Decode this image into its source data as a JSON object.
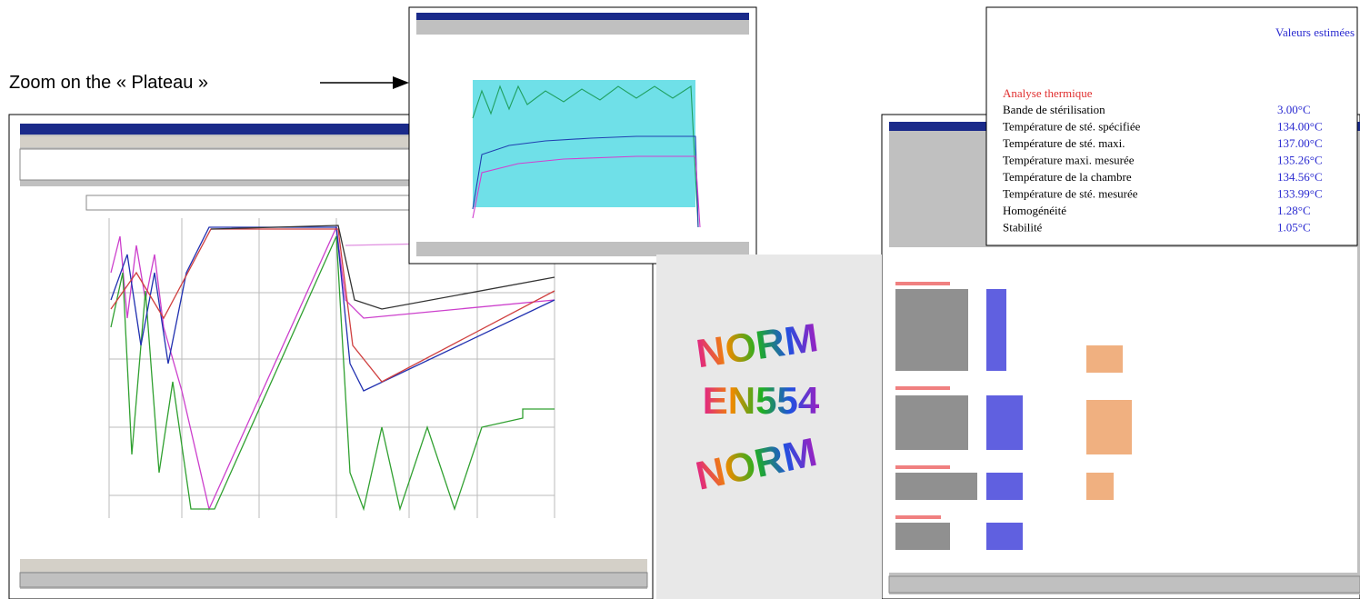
{
  "caption": "Zoom on the « Plateau »",
  "zoom_table": {
    "header": "Valeurs estimées",
    "section": "Analyse thermique",
    "rows": [
      [
        "Bande de stérilisation",
        "3.00°C"
      ],
      [
        "Température de sté. spécifiée",
        "134.00°C"
      ],
      [
        "Température de sté. maxi.",
        "137.00°C"
      ],
      [
        "Température maxi. mesurée",
        "135.26°C"
      ],
      [
        "Température de la chambre",
        "134.56°C"
      ],
      [
        "Température de sté. mesurée",
        "133.99°C"
      ],
      [
        "Homogénéité",
        "1.28°C"
      ],
      [
        "Stabilité",
        "1.05°C"
      ]
    ]
  },
  "logo": {
    "top": "NORM",
    "middle": "EN554",
    "bottom": "NORM"
  }
}
